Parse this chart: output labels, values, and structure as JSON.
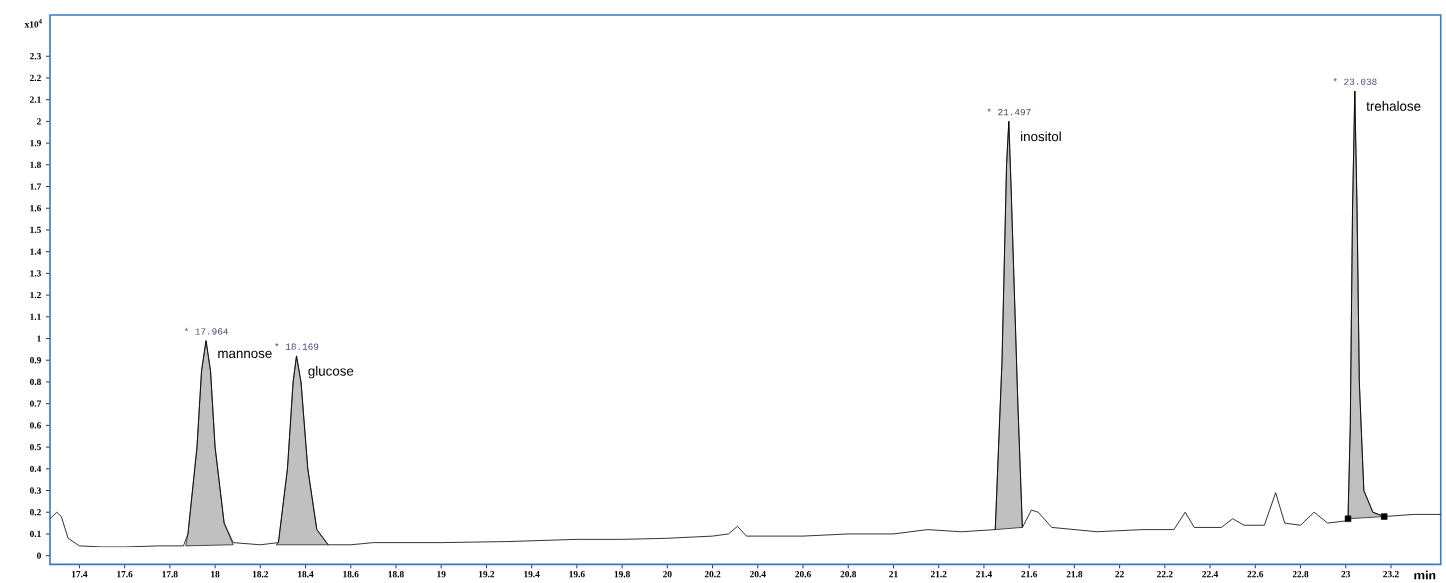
{
  "chart_data": {
    "type": "line",
    "xlabel": "min",
    "ylabel": "x10$^{4}$",
    "xlim": [
      17.27,
      23.42
    ],
    "ylim": [
      -0.04,
      2.49
    ],
    "xticks": [
      17.4,
      17.6,
      17.8,
      18,
      18.2,
      18.4,
      18.6,
      18.8,
      19,
      19.2,
      19.4,
      19.6,
      19.8,
      20,
      20.2,
      20.4,
      20.6,
      20.8,
      21,
      21.2,
      21.4,
      21.6,
      21.8,
      22,
      22.2,
      22.4,
      22.6,
      22.8,
      23,
      23.2
    ],
    "yticks": [
      0,
      0.1,
      0.2,
      0.3,
      0.4,
      0.5,
      0.6,
      0.7,
      0.8,
      0.9,
      1,
      1.1,
      1.2,
      1.3,
      1.4,
      1.5,
      1.6,
      1.7,
      1.8,
      1.9,
      2,
      2.1,
      2.2,
      2.3
    ],
    "series": [
      {
        "type": "area",
        "color": "#c0c0c0",
        "x": [
          17.87,
          17.88,
          17.92,
          17.94,
          17.96,
          17.98,
          18.0,
          18.04,
          18.08
        ],
        "values": [
          0.045,
          0.1,
          0.5,
          0.85,
          0.99,
          0.85,
          0.5,
          0.15,
          0.05
        ]
      },
      {
        "type": "area",
        "color": "#c0c0c0",
        "x": [
          18.27,
          18.28,
          18.32,
          18.345,
          18.36,
          18.38,
          18.41,
          18.45,
          18.5
        ],
        "values": [
          0.05,
          0.06,
          0.4,
          0.8,
          0.92,
          0.8,
          0.4,
          0.12,
          0.05
        ]
      },
      {
        "type": "area",
        "color": "#c0c0c0",
        "x": [
          21.45,
          21.48,
          21.5,
          21.51,
          21.52,
          21.55,
          21.57
        ],
        "values": [
          0.12,
          0.9,
          1.8,
          2.0,
          1.7,
          0.7,
          0.13
        ]
      },
      {
        "type": "area",
        "color": "#c0c0c0",
        "x": [
          23.01,
          23.02,
          23.03,
          23.04,
          23.05,
          23.06,
          23.08,
          23.12,
          23.17
        ],
        "values": [
          0.17,
          0.6,
          1.6,
          2.14,
          1.6,
          0.8,
          0.3,
          0.2,
          0.18
        ]
      },
      {
        "type": "line",
        "color": "#000000",
        "x": [
          17.27,
          17.3,
          17.32,
          17.35,
          17.4,
          17.5,
          17.6,
          17.75,
          17.86,
          17.88,
          17.92,
          17.94,
          17.96,
          17.98,
          18.0,
          18.04,
          18.08,
          18.2,
          18.28,
          18.32,
          18.345,
          18.36,
          18.38,
          18.41,
          18.45,
          18.5,
          18.6,
          18.7,
          19.0,
          19.3,
          19.6,
          19.8,
          20.0,
          20.2,
          20.27,
          20.31,
          20.35,
          20.6,
          20.8,
          21.0,
          21.15,
          21.3,
          21.45,
          21.48,
          21.5,
          21.51,
          21.52,
          21.55,
          21.57,
          21.61,
          21.64,
          21.7,
          21.9,
          22.1,
          22.24,
          22.29,
          22.33,
          22.45,
          22.5,
          22.55,
          22.64,
          22.69,
          22.73,
          22.8,
          22.86,
          22.92,
          23.0,
          23.01,
          23.02,
          23.03,
          23.04,
          23.05,
          23.06,
          23.08,
          23.12,
          23.17,
          23.3,
          23.42
        ],
        "values": [
          0.17,
          0.2,
          0.18,
          0.08,
          0.045,
          0.04,
          0.04,
          0.045,
          0.045,
          0.1,
          0.5,
          0.85,
          0.99,
          0.85,
          0.5,
          0.15,
          0.06,
          0.05,
          0.06,
          0.4,
          0.8,
          0.92,
          0.8,
          0.4,
          0.12,
          0.05,
          0.05,
          0.06,
          0.06,
          0.065,
          0.075,
          0.075,
          0.08,
          0.09,
          0.1,
          0.135,
          0.09,
          0.09,
          0.1,
          0.1,
          0.12,
          0.11,
          0.12,
          0.9,
          1.8,
          2.0,
          1.7,
          0.7,
          0.13,
          0.21,
          0.2,
          0.13,
          0.11,
          0.12,
          0.12,
          0.2,
          0.13,
          0.13,
          0.17,
          0.14,
          0.14,
          0.29,
          0.15,
          0.14,
          0.2,
          0.15,
          0.16,
          0.17,
          0.6,
          1.6,
          2.14,
          1.6,
          0.8,
          0.3,
          0.2,
          0.18,
          0.19,
          0.19
        ]
      },
      {
        "type": "scatter",
        "color": "#000000",
        "marker": "square",
        "x": [
          23.01,
          23.17
        ],
        "values": [
          0.17,
          0.18
        ]
      }
    ],
    "annotations": [
      {
        "text": "* 17.964",
        "x": 17.96,
        "y": 0.99
      },
      {
        "text": "mannose",
        "x": 17.96,
        "y": 0.99
      },
      {
        "text": "* 18.169",
        "x": 18.36,
        "y": 0.92
      },
      {
        "text": "glucose",
        "x": 18.36,
        "y": 0.92
      },
      {
        "text": "* 21.497",
        "x": 21.51,
        "y": 2.0
      },
      {
        "text": "inositol",
        "x": 21.51,
        "y": 2.0
      },
      {
        "text": "* 23.038",
        "x": 23.04,
        "y": 2.14
      },
      {
        "text": "trehalose",
        "x": 23.04,
        "y": 2.14
      }
    ]
  }
}
